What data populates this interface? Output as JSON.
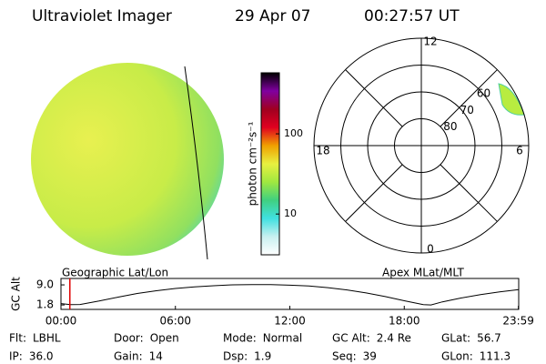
{
  "header": {
    "title": "Ultraviolet Imager",
    "date": "29 Apr 07",
    "time": "00:27:57 UT"
  },
  "colorbar": {
    "label": "photon cm⁻²s⁻¹",
    "log_scale": true,
    "ylim": [
      3.1,
      577
    ],
    "yticks": [
      10,
      100
    ],
    "colors": [
      "#ffffff",
      "#c8f0f0",
      "#40e0e0",
      "#40d080",
      "#a0e840",
      "#e8f040",
      "#f0a000",
      "#e00020",
      "#a00020",
      "#8000a0",
      "#000000"
    ]
  },
  "image_caption": "Geographic Lat/Lon",
  "polar": {
    "caption": "Apex MLat/MLT",
    "rlim": [
      90,
      50
    ],
    "rticks": [
      80,
      70,
      60
    ],
    "hour_labels": [
      0,
      6,
      12,
      18
    ]
  },
  "timeline": {
    "type": "line",
    "ylabel": "GC Alt",
    "color": "#000000",
    "marker_color": "#e00000",
    "x": [
      0,
      0.5,
      1,
      2,
      3,
      4,
      5,
      6,
      7,
      8,
      9,
      10,
      11,
      12,
      13,
      14,
      15,
      16,
      17,
      18,
      19,
      19.4,
      20,
      21,
      22,
      23,
      24
    ],
    "values": [
      2.3,
      1.9,
      1.95,
      3.2,
      4.6,
      5.9,
      6.9,
      7.7,
      8.3,
      8.7,
      9.0,
      9.1,
      9.1,
      8.9,
      8.6,
      8.0,
      7.2,
      6.1,
      4.8,
      3.3,
      1.9,
      1.8,
      2.9,
      4.3,
      5.5,
      6.5,
      7.3
    ],
    "marker_x": 0.466,
    "xlim": [
      0,
      24
    ],
    "ylim": [
      0.2,
      11.3
    ],
    "xticks": [
      {
        "value": 0,
        "label": "00:00"
      },
      {
        "value": 6,
        "label": "06:00"
      },
      {
        "value": 12,
        "label": "12:00"
      },
      {
        "value": 18,
        "label": "18:00"
      },
      {
        "value": 23.983,
        "label": "23:59"
      }
    ],
    "yticks": [
      {
        "value": 9.0,
        "label": "9.0"
      },
      {
        "value": 1.8,
        "label": "1.8"
      }
    ]
  },
  "status": [
    [
      {
        "label": "Flt:",
        "value": "LBHL"
      },
      {
        "label": "Door:",
        "value": "Open"
      },
      {
        "label": "Mode:",
        "value": "Normal"
      },
      {
        "label": "GC Alt:",
        "value": "2.4 Re"
      },
      {
        "label": "GLat:",
        "value": "56.7"
      }
    ],
    [
      {
        "label": "IP:",
        "value": "36.0"
      },
      {
        "label": "Gain:",
        "value": "14"
      },
      {
        "label": "Dsp:",
        "value": "1.9"
      },
      {
        "label": "Seq:",
        "value": "39"
      },
      {
        "label": "GLon:",
        "value": "111.3"
      }
    ]
  ]
}
